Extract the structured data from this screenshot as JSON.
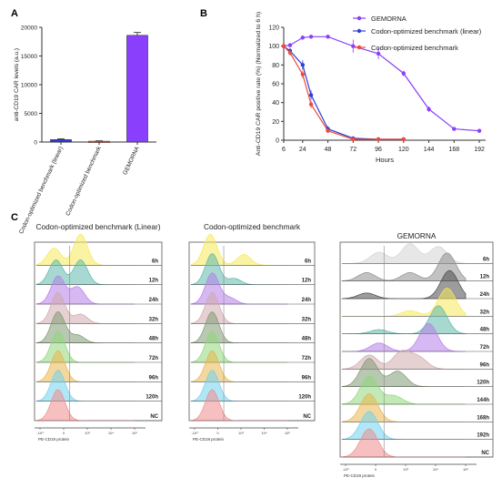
{
  "panels": {
    "a": "A",
    "b": "B",
    "c": "C"
  },
  "colors": {
    "purple": "#8a3ffc",
    "blue": "#2e3fd6",
    "red": "#ef4b3c",
    "axis": "#333333",
    "ridge": [
      "#f5ea58",
      "#5fb8ab",
      "#b57fe8",
      "#cfa9ad",
      "#7f9a72",
      "#8fd77a",
      "#e9b64e",
      "#6fd1ee",
      "#f08c8c"
    ],
    "ridge_gemorna": [
      "#d4d4d4",
      "#8f8f8f",
      "#4a4a4a",
      "#f5ea58",
      "#5fb8ab",
      "#b57fe8",
      "#cfa9ad",
      "#7f9a72",
      "#8fd77a",
      "#e9b64e",
      "#6fd1ee",
      "#f08c8c"
    ]
  },
  "chart_data": [
    {
      "type": "bar",
      "categories": [
        "Codon-optimized benchmark (linear)",
        "Codon-optimized benchmark",
        "GEMORNA"
      ],
      "values": [
        420,
        150,
        18600
      ],
      "errors": [
        120,
        60,
        500
      ],
      "colors": [
        "#2e3fd6",
        "#ef4b3c",
        "#8a3ffc"
      ],
      "ylabel": "anti-CD19 CAR levels (a.u.)",
      "ylim": [
        0,
        20000
      ],
      "yticks": [
        0,
        5000,
        10000,
        15000,
        20000
      ]
    },
    {
      "type": "line",
      "xlabel": "Hours",
      "ylabel": "Anti-CD19 CAR positive rate (%) (Normalized to 6 h)",
      "xlim": [
        6,
        198
      ],
      "ylim": [
        0,
        120
      ],
      "xticks": [
        6,
        24,
        48,
        72,
        96,
        120,
        144,
        168,
        192
      ],
      "yticks": [
        0,
        20,
        40,
        60,
        80,
        100,
        120
      ],
      "legend_position": "top-right",
      "series": [
        {
          "name": "GEMORNA",
          "color": "#8a3ffc",
          "x": [
            6,
            12,
            24,
            32,
            48,
            72,
            96,
            120,
            144,
            168,
            192
          ],
          "y": [
            100,
            101,
            109,
            110,
            110,
            100,
            92,
            71,
            33,
            12,
            10
          ],
          "err": [
            2,
            2,
            2,
            2,
            2,
            7,
            6,
            3,
            3,
            2,
            2
          ]
        },
        {
          "name": "Codon-optimized benchmark (linear)",
          "color": "#2e3fd6",
          "x": [
            6,
            12,
            24,
            32,
            48,
            72,
            96,
            120
          ],
          "y": [
            100,
            95,
            80,
            48,
            12,
            2,
            1,
            1
          ],
          "err": [
            2,
            3,
            5,
            5,
            3,
            1,
            1,
            1
          ]
        },
        {
          "name": "Codon-optimized benchmark",
          "color": "#ef4b3c",
          "x": [
            6,
            12,
            24,
            32,
            48,
            72,
            96,
            120
          ],
          "y": [
            100,
            93,
            70,
            38,
            10,
            1,
            1,
            1
          ],
          "err": [
            2,
            3,
            4,
            4,
            2,
            1,
            1,
            1
          ]
        }
      ]
    },
    {
      "type": "area",
      "title": "Codon-optimized benchmark (Linear)",
      "xlabel": "PE-CD19 protein",
      "xtick_labels": [
        "-10³",
        "0",
        "10³",
        "10⁴",
        "10⁵"
      ],
      "series": [
        {
          "name": "6h",
          "peaks": [
            [
              0.18,
              0.55
            ],
            [
              0.45,
              1.0
            ]
          ]
        },
        {
          "name": "12h",
          "peaks": [
            [
              0.2,
              0.8
            ],
            [
              0.45,
              0.8
            ]
          ]
        },
        {
          "name": "24h",
          "peaks": [
            [
              0.22,
              0.9
            ],
            [
              0.42,
              0.55
            ]
          ]
        },
        {
          "name": "32h",
          "peaks": [
            [
              0.22,
              1.0
            ],
            [
              0.45,
              0.3
            ]
          ]
        },
        {
          "name": "48h",
          "peaks": [
            [
              0.22,
              1.0
            ],
            [
              0.42,
              0.25
            ]
          ]
        },
        {
          "name": "72h",
          "peaks": [
            [
              0.22,
              1.0
            ]
          ]
        },
        {
          "name": "96h",
          "peaks": [
            [
              0.22,
              1.0
            ]
          ]
        },
        {
          "name": "120h",
          "peaks": [
            [
              0.22,
              1.0
            ]
          ]
        },
        {
          "name": "NC",
          "peaks": [
            [
              0.22,
              1.0
            ]
          ]
        }
      ]
    },
    {
      "type": "area",
      "title": "Codon-optimized benchmark",
      "xlabel": "PE-CD19 protein",
      "xtick_labels": [
        "-10³",
        "0",
        "10³",
        "10⁴",
        "10⁵"
      ],
      "series": [
        {
          "name": "6h",
          "peaks": [
            [
              0.2,
              1.0
            ],
            [
              0.55,
              0.35
            ]
          ]
        },
        {
          "name": "12h",
          "peaks": [
            [
              0.22,
              1.0
            ],
            [
              0.45,
              0.2
            ]
          ]
        },
        {
          "name": "24h",
          "peaks": [
            [
              0.22,
              1.0
            ],
            [
              0.4,
              0.2
            ]
          ]
        },
        {
          "name": "32h",
          "peaks": [
            [
              0.22,
              1.0
            ]
          ]
        },
        {
          "name": "48h",
          "peaks": [
            [
              0.22,
              1.0
            ]
          ]
        },
        {
          "name": "72h",
          "peaks": [
            [
              0.22,
              1.0
            ]
          ]
        },
        {
          "name": "96h",
          "peaks": [
            [
              0.22,
              1.0
            ]
          ]
        },
        {
          "name": "120h",
          "peaks": [
            [
              0.22,
              1.0
            ]
          ]
        },
        {
          "name": "NC",
          "peaks": [
            [
              0.22,
              1.0
            ]
          ]
        }
      ]
    },
    {
      "type": "area",
      "title": "GEMORNA",
      "xlabel": "PE-CD19 protein",
      "xtick_labels": [
        "-10³",
        "0",
        "10³",
        "10⁴",
        "10⁵"
      ],
      "series": [
        {
          "name": "6h",
          "peaks": [
            [
              0.3,
              0.4
            ],
            [
              0.55,
              0.7
            ],
            [
              0.78,
              0.6
            ]
          ]
        },
        {
          "name": "12h",
          "peaks": [
            [
              0.2,
              0.3
            ],
            [
              0.55,
              0.3
            ],
            [
              0.85,
              1.0
            ]
          ]
        },
        {
          "name": "24h",
          "peaks": [
            [
              0.2,
              0.2
            ],
            [
              0.87,
              1.0
            ]
          ]
        },
        {
          "name": "32h",
          "peaks": [
            [
              0.55,
              0.2
            ],
            [
              0.85,
              1.0
            ]
          ]
        },
        {
          "name": "48h",
          "peaks": [
            [
              0.3,
              0.15
            ],
            [
              0.78,
              1.0
            ]
          ]
        },
        {
          "name": "72h",
          "peaks": [
            [
              0.3,
              0.3
            ],
            [
              0.7,
              1.0
            ]
          ]
        },
        {
          "name": "96h",
          "peaks": [
            [
              0.22,
              0.5
            ],
            [
              0.48,
              0.6
            ],
            [
              0.62,
              0.4
            ]
          ]
        },
        {
          "name": "120h",
          "peaks": [
            [
              0.22,
              1.0
            ],
            [
              0.45,
              0.55
            ]
          ]
        },
        {
          "name": "144h",
          "peaks": [
            [
              0.22,
              1.0
            ],
            [
              0.42,
              0.3
            ]
          ]
        },
        {
          "name": "168h",
          "peaks": [
            [
              0.22,
              1.0
            ]
          ]
        },
        {
          "name": "192h",
          "peaks": [
            [
              0.22,
              1.0
            ]
          ]
        },
        {
          "name": "NC",
          "peaks": [
            [
              0.22,
              1.0
            ]
          ]
        }
      ]
    }
  ]
}
